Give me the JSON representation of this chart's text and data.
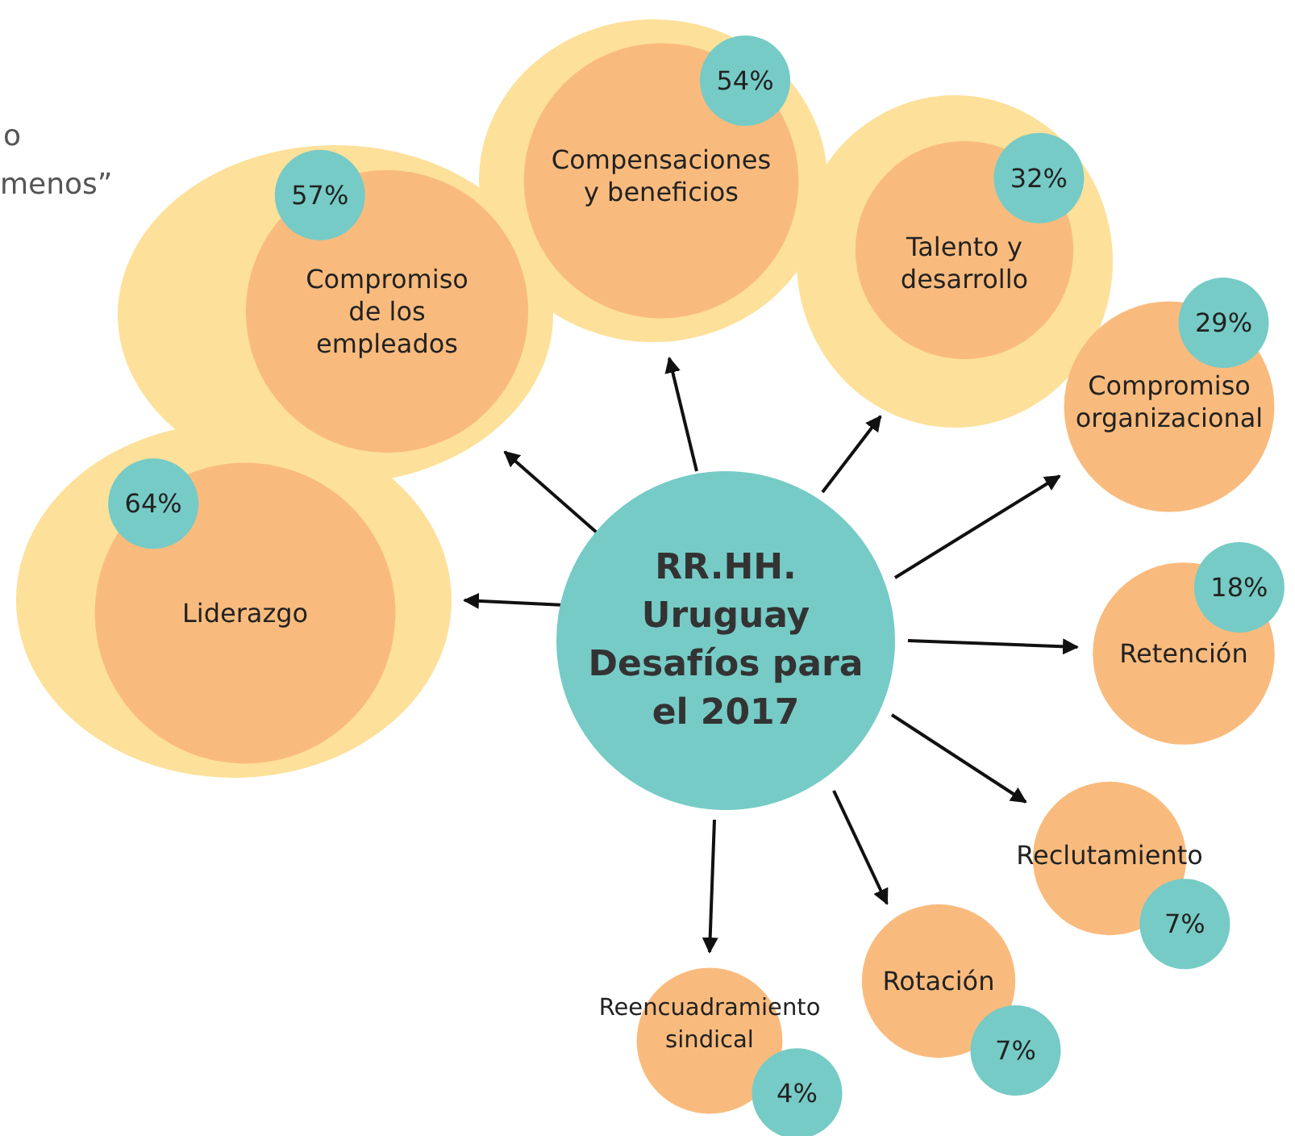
{
  "chart_data": {
    "type": "other",
    "title": "RR.HH.\nUruguay\nDesafíos para\nel 2017",
    "categories": [
      "Liderazgo",
      "Compromiso\nde los\nempleados",
      "Compensaciones\ny beneficios",
      "Talento y\ndesarrollo",
      "Compromiso\norganizacional",
      "Retención",
      "Reclutamiento",
      "Rotación",
      "Reencuadramiento\nsindical"
    ],
    "values": [
      64,
      57,
      54,
      32,
      29,
      18,
      7,
      7,
      4
    ],
    "value_labels": [
      "64%",
      "57%",
      "54%",
      "32%",
      "29%",
      "18%",
      "7%",
      "7%",
      "4%"
    ],
    "annotations": [
      "o",
      "menos”"
    ]
  }
}
